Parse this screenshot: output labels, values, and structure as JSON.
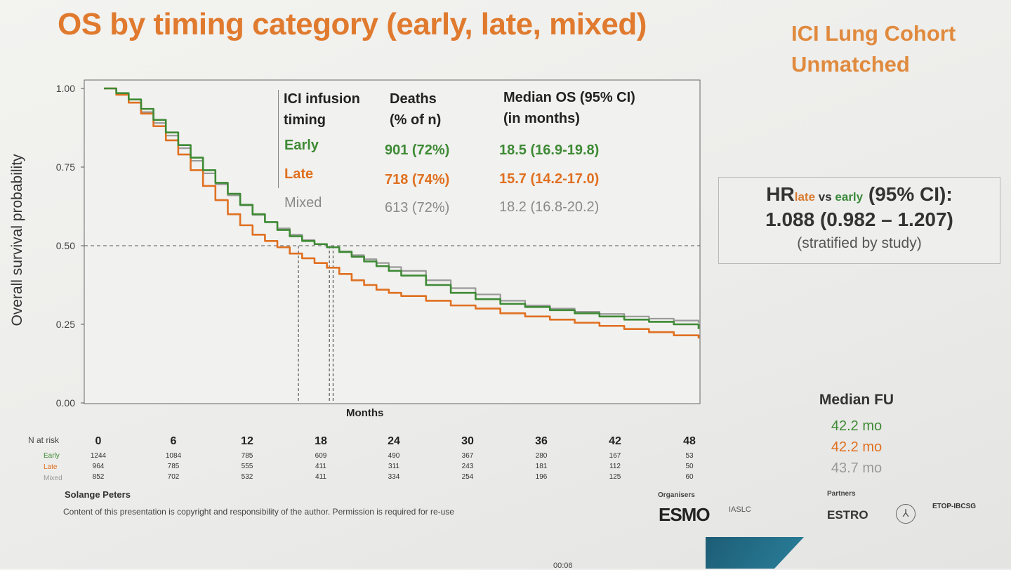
{
  "title": "OS by timing category (early, late, mixed)",
  "cohort": {
    "line1": "ICI Lung Cohort",
    "line2": "Unmatched"
  },
  "colors": {
    "early": "#3e8a35",
    "late": "#e07020",
    "mixed": "#9a9a9a",
    "accent": "#e07a2e"
  },
  "table": {
    "headers": {
      "col1a": "ICI infusion",
      "col1b": "timing",
      "col2a": "Deaths",
      "col2b": "(% of n)",
      "col3a": "Median OS (95% CI)",
      "col3b": "(in months)"
    },
    "rows": [
      {
        "group": "Early",
        "deaths": "901 (72%)",
        "median": "18.5 (16.9-19.8)"
      },
      {
        "group": "Late",
        "deaths": "718 (74%)",
        "median": "15.7 (14.2-17.0)"
      },
      {
        "group": "Mixed",
        "deaths": "613 (72%)",
        "median": "18.2 (16.8-20.2)"
      }
    ]
  },
  "hr": {
    "prefix": "HR",
    "sub_late": "late",
    "sub_vs": " vs ",
    "sub_early": "early",
    "suffix": " (95% CI):",
    "value": "1.088 (0.982 – 1.207)",
    "note": "(stratified by study)"
  },
  "median_fu": {
    "title": "Median FU",
    "early": "42.2 mo",
    "late": "42.2 mo",
    "mixed": "43.7 mo"
  },
  "risk_table": {
    "header": "N at risk",
    "labels": [
      "Early",
      "Late",
      "Mixed"
    ],
    "times": [
      "0",
      "6",
      "12",
      "18",
      "24",
      "30",
      "36",
      "42",
      "48"
    ],
    "early": [
      "1244",
      "1084",
      "785",
      "609",
      "490",
      "367",
      "280",
      "167",
      "53"
    ],
    "late": [
      "964",
      "785",
      "555",
      "411",
      "311",
      "243",
      "181",
      "112",
      "50"
    ],
    "mixed": [
      "852",
      "702",
      "532",
      "411",
      "334",
      "254",
      "196",
      "125",
      "60"
    ]
  },
  "footer": {
    "author": "Solange Peters",
    "copyright": "Content of this presentation is copyright and responsibility of the author. Permission is required for re-use",
    "organisers": "Organisers",
    "partners": "Partners",
    "esmo": "ESMO",
    "iaslc": "IASLC",
    "estro": "ESTRO",
    "etop": "ETOP-IBCSG",
    "time": "00:06"
  },
  "chart_data": {
    "type": "line",
    "title": "OS by timing category (early, late, mixed)",
    "xlabel": "Months",
    "ylabel": "Overall survival probability",
    "xlim": [
      0,
      48
    ],
    "ylim": [
      0,
      1
    ],
    "yticks": [
      "0.00",
      "0.25",
      "0.50",
      "0.75",
      "1.00"
    ],
    "reference_line": 0.5,
    "median_markers": [
      15.7,
      18.2,
      18.5
    ],
    "series": [
      {
        "name": "Early",
        "x": [
          0,
          1,
          2,
          3,
          4,
          5,
          6,
          7,
          8,
          9,
          10,
          11,
          12,
          13,
          14,
          15,
          16,
          17,
          18,
          19,
          20,
          21,
          22,
          23,
          24,
          26,
          28,
          30,
          32,
          34,
          36,
          38,
          40,
          42,
          44,
          46,
          48
        ],
        "y": [
          1.0,
          0.985,
          0.965,
          0.935,
          0.9,
          0.86,
          0.82,
          0.78,
          0.74,
          0.7,
          0.665,
          0.63,
          0.6,
          0.575,
          0.55,
          0.53,
          0.515,
          0.505,
          0.495,
          0.48,
          0.465,
          0.45,
          0.435,
          0.42,
          0.405,
          0.375,
          0.35,
          0.33,
          0.315,
          0.305,
          0.295,
          0.285,
          0.275,
          0.265,
          0.258,
          0.25,
          0.235
        ]
      },
      {
        "name": "Late",
        "x": [
          0,
          1,
          2,
          3,
          4,
          5,
          6,
          7,
          8,
          9,
          10,
          11,
          12,
          13,
          14,
          15,
          16,
          17,
          18,
          19,
          20,
          21,
          22,
          23,
          24,
          26,
          28,
          30,
          32,
          34,
          36,
          38,
          40,
          42,
          44,
          46,
          48
        ],
        "y": [
          1.0,
          0.98,
          0.955,
          0.92,
          0.88,
          0.835,
          0.79,
          0.74,
          0.69,
          0.645,
          0.6,
          0.565,
          0.535,
          0.515,
          0.495,
          0.475,
          0.46,
          0.445,
          0.43,
          0.41,
          0.39,
          0.375,
          0.36,
          0.35,
          0.34,
          0.325,
          0.31,
          0.3,
          0.285,
          0.275,
          0.265,
          0.255,
          0.245,
          0.235,
          0.225,
          0.215,
          0.205
        ]
      },
      {
        "name": "Mixed",
        "x": [
          0,
          1,
          2,
          3,
          4,
          5,
          6,
          7,
          8,
          9,
          10,
          11,
          12,
          13,
          14,
          15,
          16,
          17,
          18,
          19,
          20,
          21,
          22,
          23,
          24,
          26,
          28,
          30,
          32,
          34,
          36,
          38,
          40,
          42,
          44,
          46,
          48
        ],
        "y": [
          1.0,
          0.98,
          0.955,
          0.925,
          0.89,
          0.85,
          0.81,
          0.77,
          0.73,
          0.695,
          0.66,
          0.628,
          0.598,
          0.575,
          0.555,
          0.535,
          0.518,
          0.505,
          0.495,
          0.482,
          0.47,
          0.457,
          0.445,
          0.432,
          0.42,
          0.39,
          0.365,
          0.345,
          0.325,
          0.31,
          0.3,
          0.29,
          0.283,
          0.275,
          0.268,
          0.262,
          0.255
        ]
      }
    ]
  }
}
